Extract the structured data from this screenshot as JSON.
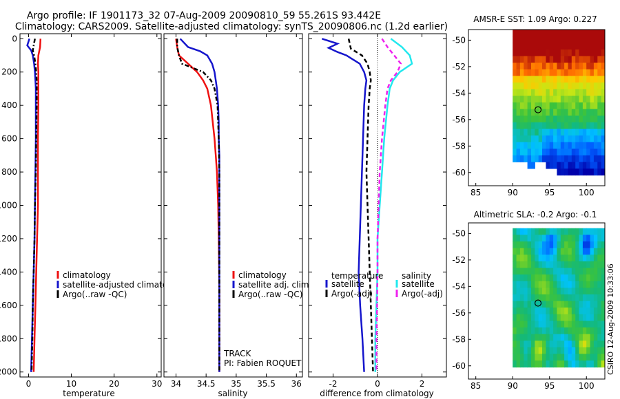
{
  "header": {
    "line1": "Argo profile: IF 1901173_32 07-Aug-2009 20090810_59 55.261S 93.442E",
    "line2": "Climatology: CARS2009. Satellite-adjusted climatology: synTS_20090806.nc (1.2d earlier)"
  },
  "colors": {
    "climatology": "#ee1111",
    "satellite": "#1515cc",
    "argo": "#000000",
    "salinity_satellite": "#22e8ee",
    "salinity_argo": "#ee22ee"
  },
  "annotations": {
    "track": "TRACK",
    "pi": "PI: Fabien ROQUET",
    "credit": "CSIRO 12-Aug-2009 10:33:06"
  },
  "chart_data": [
    {
      "type": "line",
      "id": "temperature",
      "xlabel": "temperature",
      "ylabel": "",
      "xlim": [
        -2,
        31
      ],
      "ylim": [
        2030,
        -30
      ],
      "xticks": [
        0,
        10,
        20,
        30
      ],
      "xtick_labels": [
        "0",
        "10",
        "20",
        "30"
      ],
      "yticks": [
        0,
        200,
        400,
        600,
        800,
        1000,
        1200,
        1400,
        1600,
        1800,
        2000
      ],
      "ytick_labels": [
        "0",
        "200",
        "400",
        "600",
        "800",
        "1000",
        "1200",
        "1400",
        "1600",
        "1800",
        "2000"
      ],
      "legend": [
        "climatology",
        "satellite-adjusted climatology",
        "Argo(..raw -QC)"
      ],
      "series": [
        {
          "name": "climatology",
          "depth": [
            0,
            50,
            100,
            150,
            200,
            250,
            300,
            400,
            600,
            800,
            1000,
            1200,
            1400,
            1600,
            1800,
            2000
          ],
          "values": [
            2.8,
            2.7,
            2.3,
            2.2,
            2.3,
            2.3,
            2.3,
            2.3,
            2.2,
            2.2,
            2.2,
            2.0,
            1.8,
            1.6,
            1.4,
            1.2
          ]
        },
        {
          "name": "satellite-adjusted climatology",
          "depth": [
            0,
            40,
            70,
            100,
            150,
            200,
            250,
            300,
            400,
            600,
            800,
            1000,
            1200,
            1400,
            1600,
            1800,
            2000
          ],
          "values": [
            0.2,
            -0.3,
            0.6,
            1.0,
            1.3,
            1.5,
            1.6,
            1.7,
            1.7,
            1.7,
            1.6,
            1.5,
            1.4,
            1.2,
            1.0,
            0.8,
            0.6
          ]
        },
        {
          "name": "Argo(..raw -QC)",
          "depth": [
            0,
            40,
            70,
            100,
            150,
            200,
            250,
            300,
            400,
            600,
            800,
            1000,
            1200,
            1400,
            1600,
            1800,
            2000
          ],
          "values": [
            1.5,
            1.2,
            1.0,
            1.3,
            1.6,
            1.8,
            1.9,
            1.9,
            1.9,
            1.8,
            1.7,
            1.5,
            1.4,
            1.2,
            1.0,
            0.9,
            0.7
          ]
        }
      ]
    },
    {
      "type": "line",
      "id": "salinity",
      "xlabel": "salinity",
      "ylabel": "",
      "xlim": [
        33.8,
        36.1
      ],
      "ylim": [
        2030,
        -30
      ],
      "xticks": [
        34,
        34.5,
        35,
        35.5,
        36
      ],
      "xtick_labels": [
        "34",
        "34.5",
        "35",
        "35.5",
        "36"
      ],
      "legend": [
        "climatology",
        "satellite adj. clim.",
        "Argo(..raw -QC)"
      ],
      "series": [
        {
          "name": "climatology",
          "depth": [
            0,
            50,
            100,
            150,
            200,
            250,
            300,
            400,
            500,
            600,
            700,
            800,
            1000,
            1200,
            1500,
            2000
          ],
          "values": [
            34.0,
            34.02,
            34.05,
            34.2,
            34.35,
            34.45,
            34.52,
            34.58,
            34.61,
            34.64,
            34.66,
            34.68,
            34.7,
            34.71,
            34.72,
            34.72
          ]
        },
        {
          "name": "satellite adj. clim.",
          "depth": [
            0,
            50,
            75,
            100,
            150,
            200,
            250,
            300,
            400,
            500,
            600,
            700,
            800,
            1000,
            1200,
            1500,
            2000
          ],
          "values": [
            34.07,
            34.2,
            34.4,
            34.52,
            34.6,
            34.64,
            34.66,
            34.68,
            34.7,
            34.71,
            34.71,
            34.72,
            34.72,
            34.72,
            34.72,
            34.72,
            34.72
          ]
        },
        {
          "name": "Argo(..raw -QC)",
          "depth": [
            0,
            50,
            100,
            150,
            200,
            250,
            300,
            400,
            600,
            800,
            1000,
            1200,
            1500,
            2000
          ],
          "values": [
            34.02,
            34.02,
            34.05,
            34.1,
            34.45,
            34.58,
            34.64,
            34.69,
            34.71,
            34.72,
            34.72,
            34.72,
            34.72,
            34.72
          ]
        }
      ]
    },
    {
      "type": "line",
      "id": "difference",
      "xlabel": "difference from climatology",
      "ylabel": "",
      "xlim": [
        -3.1,
        3.1
      ],
      "ylim": [
        2030,
        -30
      ],
      "xticks": [
        -2,
        0,
        2
      ],
      "xtick_labels": [
        "-2",
        "0",
        "2"
      ],
      "legend_groups": [
        {
          "title": "temperature",
          "items": [
            "satellite",
            "Argo(-adj)"
          ]
        },
        {
          "title": "salinity",
          "items": [
            "satellite",
            "Argo(-adj)"
          ]
        }
      ],
      "series": [
        {
          "name": "temperature satellite",
          "depth": [
            0,
            30,
            55,
            80,
            100,
            150,
            200,
            250,
            300,
            400,
            600,
            800,
            1000,
            1200,
            1400,
            1600,
            1800,
            2000
          ],
          "values": [
            -2.5,
            -1.8,
            -2.2,
            -1.8,
            -1.4,
            -0.8,
            -0.6,
            -0.5,
            -0.55,
            -0.6,
            -0.65,
            -0.7,
            -0.75,
            -0.8,
            -0.85,
            -0.78,
            -0.68,
            -0.6
          ]
        },
        {
          "name": "temperature Argo(-adj)",
          "depth": [
            0,
            60,
            100,
            150,
            200,
            250,
            300,
            400,
            600,
            800,
            1000,
            1200,
            1400,
            1600,
            1800,
            2000
          ],
          "values": [
            -1.3,
            -1.2,
            -0.7,
            -0.45,
            -0.35,
            -0.3,
            -0.35,
            -0.4,
            -0.45,
            -0.5,
            -0.45,
            -0.4,
            -0.35,
            -0.3,
            -0.25,
            -0.2
          ]
        },
        {
          "name": "salinity satellite",
          "depth": [
            0,
            50,
            100,
            150,
            200,
            250,
            300,
            400,
            600,
            800,
            1000,
            1200,
            1400,
            1600,
            1800,
            2000
          ],
          "values": [
            0.6,
            1.1,
            1.45,
            1.55,
            1.0,
            0.7,
            0.55,
            0.45,
            0.3,
            0.2,
            0.1,
            0.0,
            0.0,
            -0.05,
            -0.1,
            -0.1
          ]
        },
        {
          "name": "salinity Argo(-adj)",
          "depth": [
            0,
            50,
            100,
            150,
            200,
            250,
            300,
            400,
            600,
            800,
            1000,
            1200,
            1400,
            1600,
            1800,
            2000
          ],
          "values": [
            0.2,
            0.45,
            0.75,
            1.05,
            0.9,
            0.6,
            0.45,
            0.35,
            0.2,
            0.1,
            0.05,
            0.0,
            0.0,
            -0.02,
            -0.05,
            -0.05
          ]
        }
      ]
    },
    {
      "type": "heatmap",
      "id": "amsre",
      "title": "AMSR-E SST: 1.09 Argo: 0.227",
      "xlim": [
        84,
        102.5
      ],
      "ylim": [
        -61,
        -49.2
      ],
      "xticks": [
        85,
        90,
        95,
        100
      ],
      "xtick_labels": [
        "85",
        "90",
        "95",
        "100"
      ],
      "yticks": [
        -50,
        -52,
        -54,
        -56,
        -58,
        -60
      ],
      "ytick_labels": [
        "-50",
        "-52",
        "-54",
        "-56",
        "-58",
        "-60"
      ],
      "data_extent": {
        "lon": [
          90,
          102.5
        ],
        "lat": [
          -60.1,
          -49.2
        ]
      },
      "marker": {
        "lon": 93.44,
        "lat": -55.26
      }
    },
    {
      "type": "heatmap",
      "id": "sla",
      "title": "Altimetric SLA: -0.2 Argo: -0.1",
      "xlim": [
        84,
        102.5
      ],
      "ylim": [
        -61,
        -49.2
      ],
      "xticks": [
        85,
        90,
        95,
        100
      ],
      "xtick_labels": [
        "85",
        "90",
        "95",
        "100"
      ],
      "yticks": [
        -50,
        -52,
        -54,
        -56,
        -58,
        -60
      ],
      "ytick_labels": [
        "-50",
        "-52",
        "-54",
        "-56",
        "-58",
        "-60"
      ],
      "data_extent": {
        "lon": [
          90,
          102.5
        ],
        "lat": [
          -60.1,
          -49.6
        ]
      },
      "marker": {
        "lon": 93.44,
        "lat": -55.26
      }
    }
  ]
}
